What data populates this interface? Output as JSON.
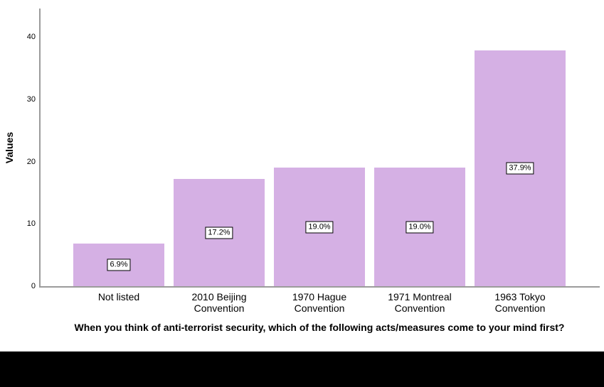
{
  "chart_data": {
    "type": "bar",
    "title": "",
    "xlabel": "When you think of anti-terrorist security, which of the following acts/measures come to your mind first?",
    "ylabel": "Values",
    "categories": [
      "Not listed",
      "2010 Beijing Convention",
      "1970 Hague Convention",
      "1971 Montreal Convention",
      "1963 Tokyo Convention"
    ],
    "values": [
      6.9,
      17.2,
      19.0,
      19.0,
      37.9
    ],
    "bar_value_labels": [
      "6.9%",
      "17.2%",
      "19.0%",
      "19.0%",
      "37.9%"
    ],
    "yticks": [
      "0",
      "10",
      "20",
      "30",
      "40"
    ],
    "ylim": [
      0,
      44.6
    ],
    "grid": false,
    "legend": null,
    "colors": {
      "bar": "#d5b0e4",
      "axis": "#9b9b9b",
      "label_box_bg": "#ffffff",
      "label_box_border": "#000000",
      "footer": "#000000",
      "text": "#000000"
    }
  }
}
